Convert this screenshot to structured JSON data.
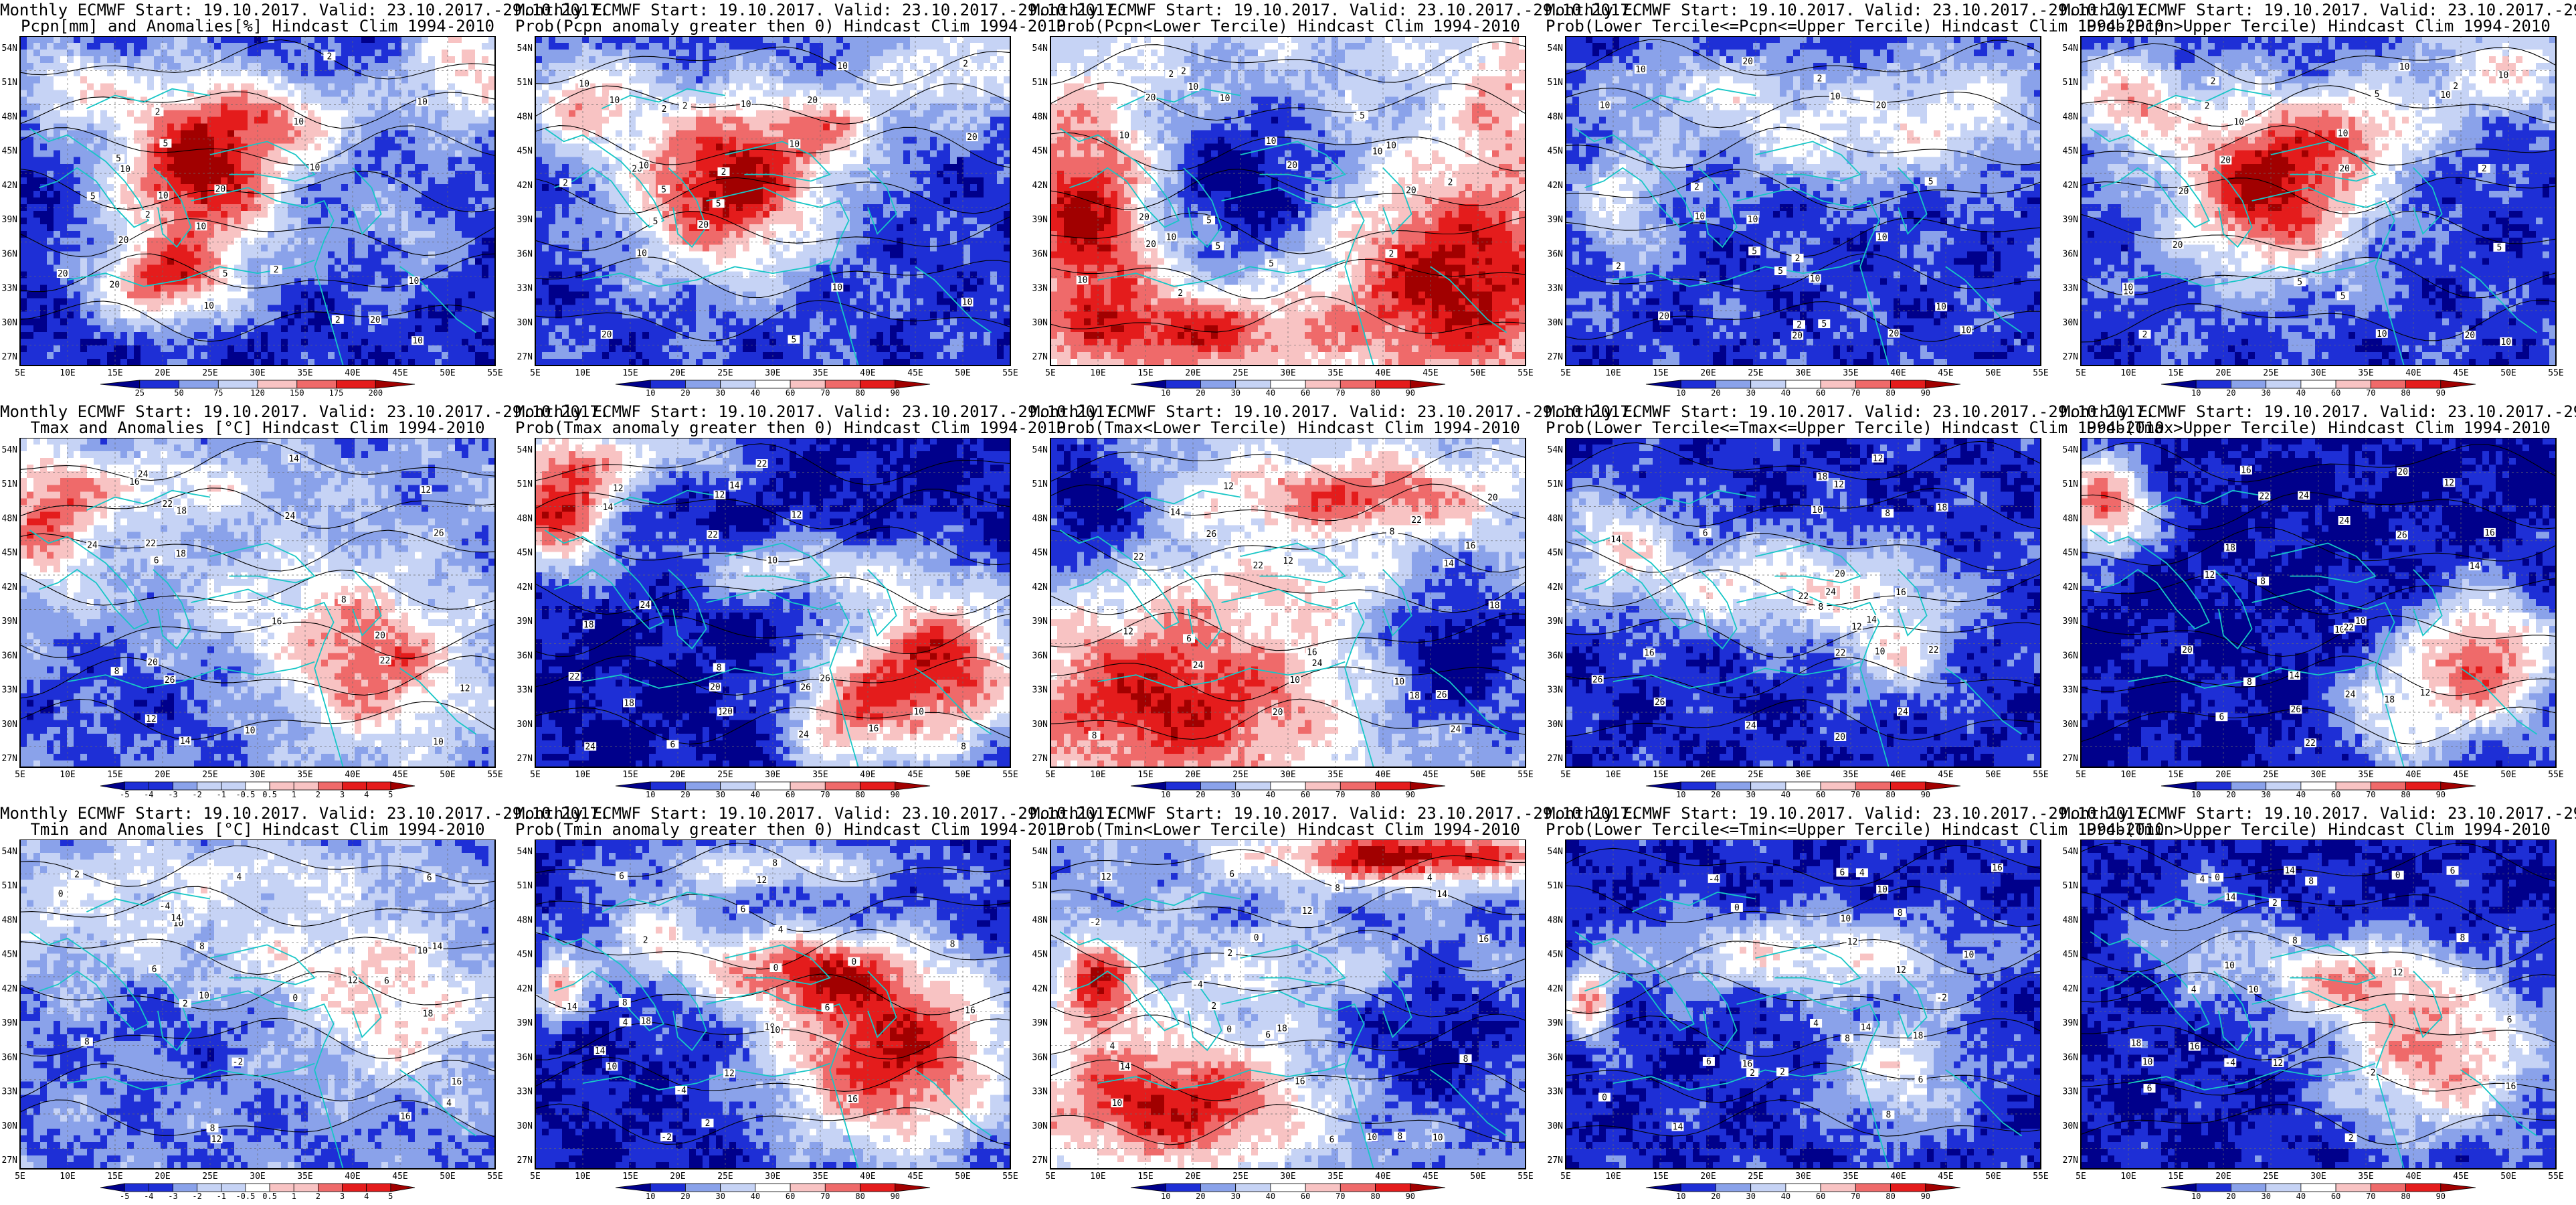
{
  "row_titles": [
    {
      "line1": "Monthly ECMWF Start: 19.10.2017. Valid: 23.10.2017.-29.10.2017.",
      "p": [
        "Pcpn[mm] and Anomalies[%] Hindcast Clim 1994-2010",
        "Prob(Pcpn anomaly greater then 0) Hindcast Clim 1994-2010",
        "Prob(Pcpn<Lower Tercile) Hindcast Clim 1994-2010",
        "Prob(Lower Tercile<=Pcpn<=Upper Tercile) Hindcast Clim 1994-2010",
        "Prob(Pcpn>Upper Tercile) Hindcast Clim 1994-2010"
      ]
    },
    {
      "line1": "Monthly ECMWF Start: 19.10.2017. Valid: 23.10.2017.-29.10.2017.",
      "p": [
        "Tmax and Anomalies [°C] Hindcast Clim 1994-2010",
        "Prob(Tmax anomaly greater then 0) Hindcast Clim 1994-2010",
        "Prob(Tmax<Lower Tercile) Hindcast Clim 1994-2010",
        "Prob(Lower Tercile<=Tmax<=Upper Tercile) Hindcast Clim 1994-2010",
        "Prob(Tmax>Upper Tercile) Hindcast Clim 1994-2010"
      ]
    },
    {
      "line1": "Monthly ECMWF Start: 19.10.2017. Valid: 23.10.2017.-29.10.2017.",
      "p": [
        "Tmin and Anomalies [°C] Hindcast Clim 1994-2010",
        "Prob(Tmin anomaly greater then 0) Hindcast Clim 1994-2010",
        "Prob(Tmin<Lower Tercile) Hindcast Clim 1994-2010",
        "Prob(Lower Tercile<=Tmin<=Upper Tercile) Hindcast Clim 1994-2010",
        "Prob(Tmin>Upper Tercile) Hindcast Clim 1994-2010"
      ]
    }
  ],
  "lat_labels": [
    "54N",
    "51N",
    "48N",
    "45N",
    "42N",
    "39N",
    "36N",
    "33N",
    "30N",
    "27N"
  ],
  "lon_labels": [
    "5E",
    "10E",
    "15E",
    "20E",
    "25E",
    "30E",
    "35E",
    "40E",
    "45E",
    "50E",
    "55E"
  ],
  "colorbars": {
    "pcpn_anom": [
      "25",
      "50",
      "75",
      "120",
      "150",
      "175",
      "200"
    ],
    "prob": [
      "10",
      "20",
      "30",
      "40",
      "60",
      "70",
      "80",
      "90"
    ],
    "temp_anom": [
      "-5",
      "-4",
      "-3",
      "-2",
      "-1",
      "-0.5",
      "0.5",
      "1",
      "2",
      "3",
      "4",
      "5"
    ]
  },
  "map_values": {
    "pcpn": [
      "2",
      "10",
      "10",
      "10",
      "20",
      "20",
      "2",
      "2",
      "5",
      "5",
      "10",
      "20",
      "10",
      "20",
      "10",
      "5",
      "2",
      "10",
      "20",
      "2",
      "5",
      "10",
      "10"
    ],
    "tmax": [
      "6",
      "8",
      "8",
      "10",
      "12",
      "16",
      "18",
      "20",
      "22",
      "24",
      "24",
      "26",
      "14",
      "16",
      "22",
      "20",
      "18",
      "22",
      "24",
      "26",
      "12",
      "10",
      "12",
      "14"
    ],
    "tmin": [
      "-4",
      "-2",
      "0",
      "2",
      "4",
      "6",
      "8",
      "10",
      "12",
      "14",
      "16",
      "4",
      "6",
      "10",
      "12",
      "8",
      "10",
      "14",
      "16",
      "18",
      "2",
      "0",
      "6",
      "8"
    ]
  },
  "colors": {
    "dark_blue": "#00008b",
    "blue": "#1e2fd6",
    "light_blue": "#8aa2ea",
    "pale_blue": "#c6d3f5",
    "white": "#ffffff",
    "pale_red": "#f8c3c3",
    "light_red": "#ef6a6a",
    "red": "#e41c1c",
    "dark_red": "#a10000",
    "coast": "#17c6c6",
    "contour": "#000000"
  },
  "panel_styles": [
    [
      "pcpn_mm",
      "pcpn_prob",
      "pcpn_lower",
      "pcpn_middle",
      "pcpn_upper"
    ],
    [
      "tmax_anom",
      "tmax_prob",
      "tmax_lower",
      "tmax_middle",
      "tmax_upper"
    ],
    [
      "tmin_anom",
      "tmin_prob",
      "tmin_lower",
      "tmin_middle",
      "tmin_upper"
    ]
  ],
  "row_value_keys": [
    "pcpn",
    "tmax",
    "tmin"
  ],
  "colorbar_keys": [
    [
      "pcpn_anom",
      "prob",
      "prob",
      "prob",
      "prob"
    ],
    [
      "temp_anom",
      "prob",
      "prob",
      "prob",
      "prob"
    ],
    [
      "temp_anom",
      "prob",
      "prob",
      "prob",
      "prob"
    ]
  ]
}
